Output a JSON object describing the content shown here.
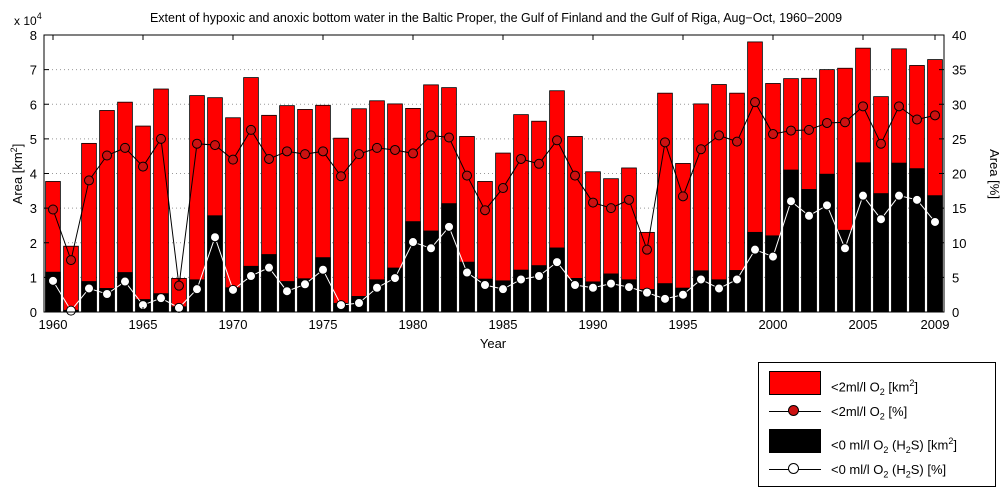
{
  "chart_data": {
    "type": "bar",
    "title": "Extent of hypoxic and anoxic bottom water in the Baltic Proper, the Gulf of Finland and the Gulf of Riga, Aug−Oct, 1960−2009",
    "xlabel": "Year",
    "ylabel": "Area [km²]",
    "ylabel2": "Area [%]",
    "exponent_label": "x 10",
    "exponent_power": "4",
    "ylim": [
      0,
      80000
    ],
    "ylim2": [
      0,
      40
    ],
    "yticks": [
      "0",
      "1",
      "2",
      "3",
      "4",
      "5",
      "6",
      "7",
      "8"
    ],
    "yticks2": [
      "0",
      "5",
      "10",
      "15",
      "20",
      "25",
      "30",
      "35",
      "40"
    ],
    "xticks": [
      "1960",
      "1965",
      "1970",
      "1975",
      "1980",
      "1985",
      "1990",
      "1995",
      "2000",
      "2005",
      "2009"
    ],
    "grid": "dotted horizontal",
    "colors": {
      "hypoxic": "#ff0000",
      "anoxic": "#000000",
      "hypoxic_marker": "#cc1111",
      "anoxic_marker": "#ffffff"
    },
    "categories": [
      1960,
      1961,
      1962,
      1963,
      1964,
      1965,
      1966,
      1967,
      1968,
      1969,
      1970,
      1971,
      1972,
      1973,
      1974,
      1975,
      1976,
      1977,
      1978,
      1979,
      1980,
      1981,
      1982,
      1983,
      1984,
      1985,
      1986,
      1987,
      1988,
      1989,
      1990,
      1991,
      1992,
      1993,
      1994,
      1995,
      1996,
      1997,
      1998,
      1999,
      2000,
      2001,
      2002,
      2003,
      2004,
      2005,
      2006,
      2007,
      2008,
      2009
    ],
    "series": [
      {
        "name": "<2ml/l O2 [km2]",
        "kind": "bar",
        "axis": "left",
        "values": [
          37700,
          19000,
          48700,
          58200,
          60600,
          53700,
          64400,
          9700,
          62500,
          61900,
          56100,
          67700,
          56800,
          59600,
          58500,
          59700,
          50200,
          58700,
          61000,
          60100,
          58800,
          65600,
          64800,
          50700,
          37700,
          45900,
          57000,
          55100,
          63900,
          50700,
          40500,
          38500,
          41600,
          23000,
          63200,
          42900,
          60100,
          65700,
          63200,
          78000,
          66000,
          67400,
          67500,
          70000,
          70400,
          76200,
          62200,
          76000,
          71200,
          72900
        ]
      },
      {
        "name": "<0 ml/l O2 (H2S) [km2]",
        "kind": "bar",
        "axis": "left",
        "values": [
          11500,
          500,
          8800,
          6800,
          11400,
          3600,
          5300,
          1500,
          9300,
          27800,
          7000,
          13200,
          16600,
          8800,
          9600,
          15700,
          2500,
          4500,
          9300,
          12700,
          26100,
          23400,
          31300,
          14400,
          9500,
          9000,
          12100,
          13400,
          18500,
          9700,
          8700,
          11000,
          9300,
          6500,
          8200,
          6900,
          11900,
          9300,
          12000,
          23000,
          22000,
          41000,
          35400,
          39800,
          23600,
          43100,
          34200,
          43000,
          41400,
          33600
        ]
      },
      {
        "name": "<2ml/l O2 [%]",
        "kind": "line",
        "axis": "right",
        "values": [
          14.8,
          7.5,
          19,
          22.6,
          23.7,
          21,
          25,
          3.8,
          24.3,
          24.1,
          22,
          26.3,
          22.1,
          23.2,
          22.8,
          23.2,
          19.6,
          22.8,
          23.7,
          23.4,
          22.9,
          25.5,
          25.2,
          19.7,
          14.7,
          17.9,
          22.1,
          21.4,
          24.8,
          19.7,
          15.8,
          15,
          16.2,
          9,
          24.5,
          16.7,
          23.5,
          25.5,
          24.6,
          30.3,
          25.7,
          26.2,
          26.3,
          27.3,
          27.4,
          29.7,
          24.3,
          29.7,
          27.8,
          28.4
        ]
      },
      {
        "name": "<0 ml/l O2 (H2S) [%]",
        "kind": "line",
        "axis": "right",
        "values": [
          4.5,
          0.2,
          3.4,
          2.6,
          4.4,
          1,
          2,
          0.6,
          3.3,
          10.8,
          3.2,
          5.2,
          6.4,
          3,
          4,
          6.1,
          1,
          1.3,
          3.5,
          4.9,
          10.1,
          9.2,
          12.3,
          5.7,
          3.9,
          3.3,
          4.7,
          5.2,
          7.2,
          3.9,
          3.5,
          4.1,
          3.6,
          2.8,
          1.9,
          2.5,
          4.7,
          3.4,
          4.7,
          9,
          8,
          16,
          13.9,
          15.4,
          9.2,
          16.8,
          13.4,
          16.8,
          16.2,
          13
        ]
      }
    ]
  },
  "legend": {
    "items": [
      {
        "label": "<2ml/l O",
        "sub": "2",
        "suffix": " [km",
        "sup": "2",
        "end": "]"
      },
      {
        "label": "<2ml/l O",
        "sub": "2",
        "suffix": " [%]",
        "sup": "",
        "end": ""
      },
      {
        "label": "<0 ml/l O",
        "sub": "2",
        "suffix": " (H",
        "sub2": "2",
        "suffix2": "S) [km",
        "sup": "2",
        "end": "]"
      },
      {
        "label": "<0 ml/l O",
        "sub": "2",
        "suffix": " (H",
        "sub2": "2",
        "suffix2": "S) [%]",
        "sup": "",
        "end": ""
      }
    ]
  }
}
